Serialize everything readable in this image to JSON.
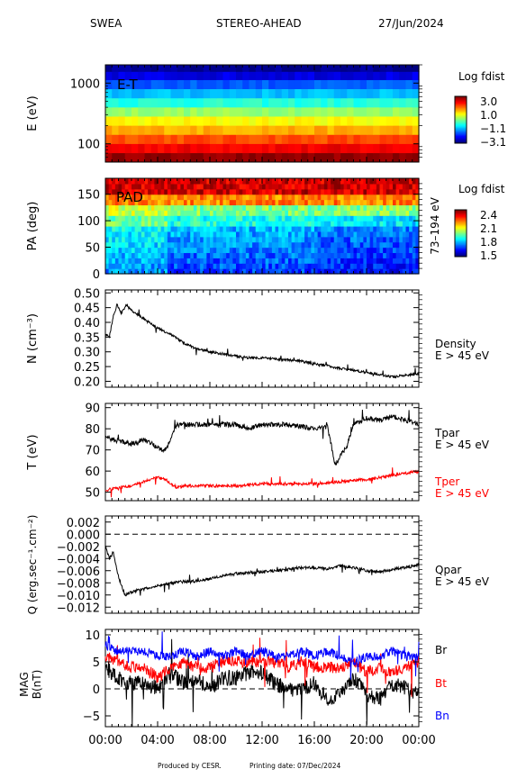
{
  "header": {
    "instrument": "SWEA",
    "spacecraft": "STEREO-AHEAD",
    "date": "27/Jun/2024"
  },
  "footer": {
    "produced": "Produced by CESR.",
    "printing": "Printing date: 07/Dec/2024"
  },
  "x_axis": {
    "ticks": [
      "00:00",
      "04:00",
      "08:00",
      "12:00",
      "16:00",
      "20:00",
      "00:00"
    ],
    "hours": [
      0,
      4,
      8,
      12,
      16,
      20,
      24
    ]
  },
  "colors": {
    "black": "#000000",
    "red": "#ff0000",
    "blue": "#0000ff"
  },
  "chart_data": [
    {
      "type": "heatmap",
      "panel": "energy",
      "ylabel": "E (eV)",
      "y_scale": "log",
      "ylim": [
        50,
        2000
      ],
      "yticks": [
        {
          "value": 1000,
          "label": "1000"
        },
        {
          "value": 100,
          "label": "100"
        }
      ],
      "annotation": "E-T",
      "colorbar": {
        "title": "Log fdist",
        "ticks": [
          "3.0",
          "1.0",
          "−1.1",
          "−3.1"
        ],
        "range": [
          -3.1,
          3.0
        ]
      },
      "energy_bands_ev": [
        60,
        85,
        120,
        170,
        240,
        340,
        480,
        680,
        960,
        1350,
        1800
      ],
      "band_log_fdist": [
        2.9,
        2.3,
        1.8,
        1.2,
        0.7,
        0.1,
        -0.6,
        -1.2,
        -1.8,
        -2.5,
        -3.0
      ]
    },
    {
      "type": "heatmap",
      "panel": "pitch-angle",
      "ylabel": "PA (deg)",
      "right_label": "73–194 eV",
      "ylim": [
        0,
        180
      ],
      "yticks": [
        {
          "value": 150,
          "label": "150"
        },
        {
          "value": 100,
          "label": "100"
        },
        {
          "value": 50,
          "label": "50"
        },
        {
          "value": 0,
          "label": "0"
        }
      ],
      "annotation": "PAD",
      "colorbar": {
        "title": "Log fdist",
        "ticks": [
          "2.4",
          "2.1",
          "1.8",
          "1.5"
        ],
        "range": [
          1.5,
          2.4
        ]
      }
    },
    {
      "type": "line",
      "panel": "density",
      "ylabel": "N (cm⁻³)",
      "ylim": [
        0.18,
        0.51
      ],
      "yticks": [
        0.5,
        0.45,
        0.4,
        0.35,
        0.3,
        0.25,
        0.2
      ],
      "series": [
        {
          "name": "Density",
          "sublabel": "E > 45 eV",
          "color": "#000000",
          "x": [
            0,
            0.3,
            0.6,
            0.9,
            1.2,
            1.6,
            2,
            3,
            4,
            5,
            6,
            7,
            8,
            9,
            10,
            11,
            12,
            13,
            14,
            15,
            16,
            17,
            18,
            19,
            20,
            21,
            22,
            23,
            24
          ],
          "y": [
            0.36,
            0.35,
            0.42,
            0.46,
            0.43,
            0.46,
            0.44,
            0.41,
            0.38,
            0.36,
            0.33,
            0.31,
            0.3,
            0.293,
            0.285,
            0.28,
            0.28,
            0.275,
            0.272,
            0.268,
            0.26,
            0.253,
            0.243,
            0.238,
            0.23,
            0.222,
            0.215,
            0.22,
            0.225
          ]
        }
      ]
    },
    {
      "type": "line",
      "panel": "temperature",
      "ylabel": "T (eV)",
      "ylim": [
        46,
        92
      ],
      "yticks": [
        90,
        80,
        70,
        60,
        50
      ],
      "series": [
        {
          "name": "Tpar",
          "sublabel": "E > 45 eV",
          "color": "#000000",
          "x": [
            0,
            1,
            2,
            3,
            4,
            4.6,
            5.5,
            6,
            8,
            10,
            11,
            12,
            13,
            14,
            15,
            16,
            17,
            17.6,
            18.5,
            19,
            20,
            21,
            22,
            23,
            24
          ],
          "y": [
            76,
            74,
            73,
            75,
            71,
            70,
            82,
            82,
            82,
            82,
            80,
            82,
            82,
            82,
            81,
            80,
            81,
            63,
            72,
            82,
            85,
            84,
            86,
            84,
            82
          ]
        },
        {
          "name": "Tper",
          "sublabel": "E > 45 eV",
          "color": "#ff0000",
          "x": [
            0,
            1,
            2,
            3,
            4,
            4.6,
            5.5,
            6,
            8,
            10,
            12,
            14,
            16,
            18,
            20,
            22,
            24
          ],
          "y": [
            51,
            52,
            53,
            55,
            57,
            56,
            52,
            53,
            53,
            53,
            54,
            54,
            54,
            55,
            56,
            58,
            60
          ]
        }
      ]
    },
    {
      "type": "line",
      "panel": "heat-flux",
      "ylabel": "Q (erg.sec⁻¹.cm⁻²)",
      "ylim": [
        -0.013,
        0.003
      ],
      "yticks": [
        {
          "value": 0.002,
          "label": "0.002"
        },
        {
          "value": 0.0,
          "label": "0.000"
        },
        {
          "value": -0.002,
          "label": "−0.002"
        },
        {
          "value": -0.004,
          "label": "−0.004"
        },
        {
          "value": -0.006,
          "label": "−0.006"
        },
        {
          "value": -0.008,
          "label": "−0.008"
        },
        {
          "value": -0.01,
          "label": "−0.010"
        },
        {
          "value": -0.012,
          "label": "−0.012"
        }
      ],
      "zero_line": 0,
      "series": [
        {
          "name": "Qpar",
          "sublabel": "E > 45 eV",
          "color": "#000000",
          "x": [
            0,
            0.3,
            0.6,
            1,
            1.5,
            2,
            3,
            4,
            5,
            6,
            7,
            8,
            9,
            10,
            11,
            12,
            13,
            14,
            15,
            16,
            17,
            18,
            19,
            20,
            21,
            22,
            23,
            24
          ],
          "y": [
            -0.002,
            -0.004,
            -0.003,
            -0.007,
            -0.01,
            -0.0095,
            -0.009,
            -0.0085,
            -0.008,
            -0.0078,
            -0.0077,
            -0.0073,
            -0.0068,
            -0.0065,
            -0.0063,
            -0.0062,
            -0.006,
            -0.0058,
            -0.0055,
            -0.0055,
            -0.0057,
            -0.0052,
            -0.0055,
            -0.006,
            -0.0062,
            -0.0058,
            -0.0055,
            -0.005
          ]
        }
      ]
    },
    {
      "type": "line",
      "panel": "magnetic-field",
      "ylabel": "MAG B(nT)",
      "ylim": [
        -7,
        11
      ],
      "yticks": [
        10,
        5,
        0,
        -5
      ],
      "zero_line": 0,
      "series": [
        {
          "name": "Br",
          "color": "#000000",
          "x": [
            0,
            1,
            2,
            3,
            4,
            5,
            6,
            7,
            8,
            9,
            10,
            11,
            12,
            13,
            14,
            15,
            16,
            17,
            18,
            19,
            20,
            21,
            22,
            23,
            24
          ],
          "y": [
            4,
            2,
            1,
            1,
            0,
            3,
            1,
            2,
            0,
            2,
            2,
            3,
            3,
            1,
            0,
            0,
            1,
            -2,
            -1,
            2,
            -1,
            -2,
            1,
            0,
            -1
          ]
        },
        {
          "name": "Bt",
          "color": "#ff0000",
          "x": [
            0,
            1,
            2,
            3,
            4,
            5,
            6,
            7,
            8,
            9,
            10,
            11,
            12,
            13,
            14,
            15,
            16,
            17,
            18,
            19,
            20,
            21,
            22,
            23,
            24
          ],
          "y": [
            6,
            5,
            4,
            4,
            2,
            4,
            5,
            4,
            4,
            5,
            5,
            5,
            5,
            5,
            4,
            5,
            4,
            4,
            4,
            5,
            3,
            4,
            3,
            4,
            5
          ]
        },
        {
          "name": "Bn",
          "color": "#0000ff",
          "x": [
            0,
            1,
            2,
            3,
            4,
            5,
            6,
            7,
            8,
            9,
            10,
            11,
            12,
            13,
            14,
            15,
            16,
            17,
            18,
            19,
            20,
            21,
            22,
            23,
            24
          ],
          "y": [
            8,
            7,
            7,
            7,
            6,
            6,
            7,
            6,
            7,
            6,
            7,
            6,
            7,
            6,
            6,
            7,
            6,
            7,
            6,
            5,
            6,
            6,
            7,
            6,
            6
          ]
        }
      ]
    }
  ]
}
